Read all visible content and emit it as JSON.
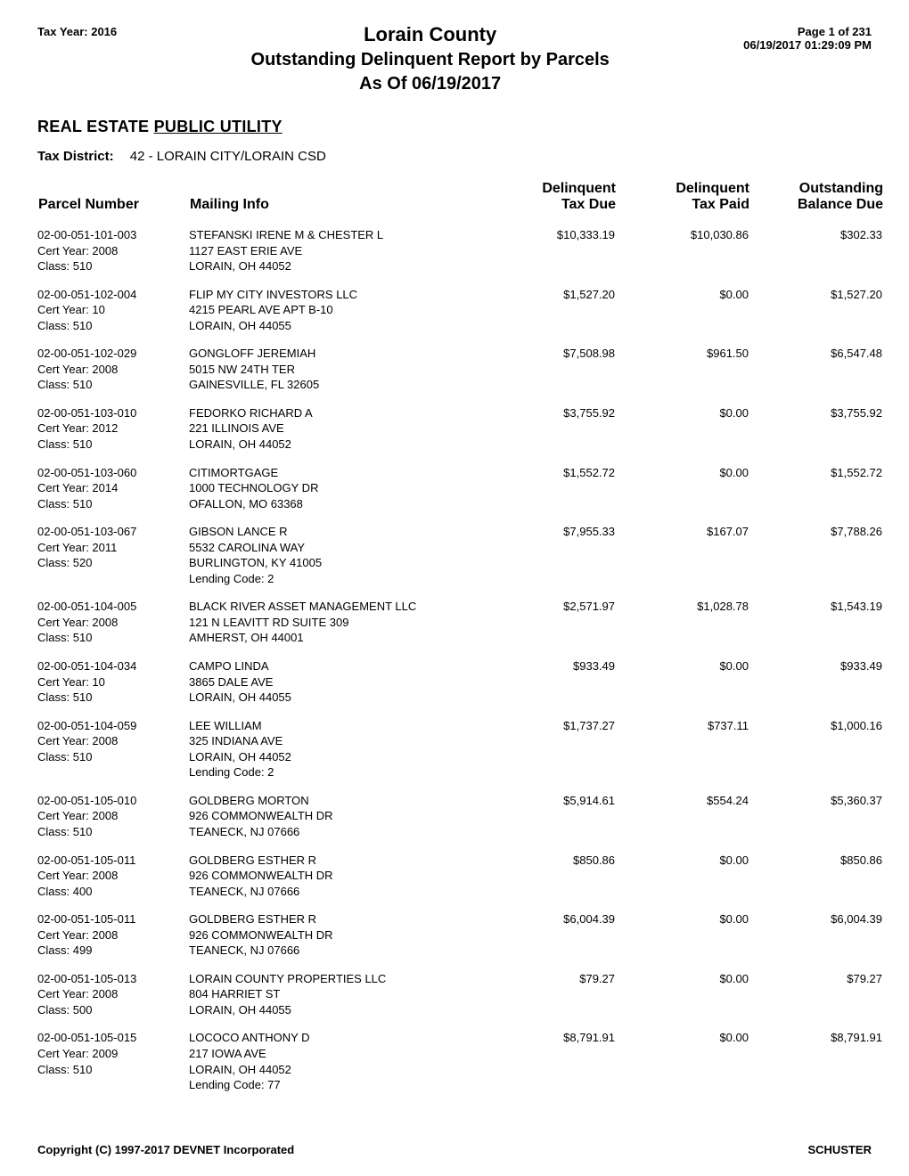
{
  "header": {
    "tax_year_label": "Tax Year: 2016",
    "page_label": "Page 1 of 231",
    "timestamp": "06/19/2017 01:29:09 PM",
    "title_main": "Lorain County",
    "title_sub": "Outstanding Delinquent Report by Parcels",
    "title_sub2": "As Of 06/19/2017"
  },
  "section": {
    "prefix": "REAL ESTATE ",
    "underlined": "PUBLIC UTILITY"
  },
  "district": {
    "label": "Tax District:",
    "value": "42 - LORAIN CITY/LORAIN CSD"
  },
  "columns": {
    "parcel": "Parcel Number",
    "mailing": "Mailing Info",
    "due_top": "Delinquent",
    "due_bottom": "Tax Due",
    "paid_top": "Delinquent",
    "paid_bottom": "Tax Paid",
    "bal_top": "Outstanding",
    "bal_bottom": "Balance Due"
  },
  "rows": [
    {
      "parcel": "02-00-051-101-003",
      "cert": "Cert Year: 2008",
      "class": "Class: 510",
      "mail": [
        "STEFANSKI IRENE M & CHESTER L",
        "1127 EAST ERIE AVE",
        "LORAIN, OH 44052"
      ],
      "due": "$10,333.19",
      "paid": "$10,030.86",
      "bal": "$302.33"
    },
    {
      "parcel": "02-00-051-102-004",
      "cert": "Cert Year: 10",
      "class": "Class: 510",
      "mail": [
        "FLIP MY CITY INVESTORS LLC",
        "4215 PEARL AVE APT B-10",
        "LORAIN, OH 44055"
      ],
      "due": "$1,527.20",
      "paid": "$0.00",
      "bal": "$1,527.20"
    },
    {
      "parcel": "02-00-051-102-029",
      "cert": "Cert Year: 2008",
      "class": "Class: 510",
      "mail": [
        "GONGLOFF  JEREMIAH",
        "5015 NW 24TH TER",
        "GAINESVILLE, FL 32605"
      ],
      "due": "$7,508.98",
      "paid": "$961.50",
      "bal": "$6,547.48"
    },
    {
      "parcel": "02-00-051-103-010",
      "cert": "Cert Year: 2012",
      "class": "Class: 510",
      "mail": [
        "FEDORKO RICHARD A",
        "221 ILLINOIS AVE",
        "LORAIN, OH 44052"
      ],
      "due": "$3,755.92",
      "paid": "$0.00",
      "bal": "$3,755.92"
    },
    {
      "parcel": "02-00-051-103-060",
      "cert": "Cert Year: 2014",
      "class": "Class: 510",
      "mail": [
        "CITIMORTGAGE",
        "1000 TECHNOLOGY DR",
        "OFALLON, MO 63368"
      ],
      "due": "$1,552.72",
      "paid": "$0.00",
      "bal": "$1,552.72"
    },
    {
      "parcel": "02-00-051-103-067",
      "cert": "Cert Year: 2011",
      "class": "Class: 520",
      "mail": [
        "GIBSON LANCE R",
        "5532 CAROLINA WAY",
        "BURLINGTON, KY 41005",
        "Lending Code:    2"
      ],
      "due": "$7,955.33",
      "paid": "$167.07",
      "bal": "$7,788.26"
    },
    {
      "parcel": "02-00-051-104-005",
      "cert": "Cert Year: 2008",
      "class": "Class: 510",
      "mail": [
        "BLACK RIVER ASSET MANAGEMENT LLC",
        "121 N LEAVITT RD SUITE 309",
        "AMHERST, OH 44001"
      ],
      "due": "$2,571.97",
      "paid": "$1,028.78",
      "bal": "$1,543.19"
    },
    {
      "parcel": "02-00-051-104-034",
      "cert": "Cert Year: 10",
      "class": "Class: 510",
      "mail": [
        "CAMPO LINDA",
        "3865 DALE AVE",
        "LORAIN, OH 44055"
      ],
      "due": "$933.49",
      "paid": "$0.00",
      "bal": "$933.49"
    },
    {
      "parcel": "02-00-051-104-059",
      "cert": "Cert Year: 2008",
      "class": "Class: 510",
      "mail": [
        "LEE WILLIAM",
        "325 INDIANA AVE",
        "LORAIN, OH 44052",
        "Lending Code:    2"
      ],
      "due": "$1,737.27",
      "paid": "$737.11",
      "bal": "$1,000.16"
    },
    {
      "parcel": "02-00-051-105-010",
      "cert": "Cert Year: 2008",
      "class": "Class: 510",
      "mail": [
        "GOLDBERG MORTON",
        "926 COMMONWEALTH DR",
        "TEANECK, NJ 07666"
      ],
      "due": "$5,914.61",
      "paid": "$554.24",
      "bal": "$5,360.37"
    },
    {
      "parcel": "02-00-051-105-011",
      "cert": "Cert Year: 2008",
      "class": "Class: 400",
      "mail": [
        "GOLDBERG ESTHER  R",
        "926 COMMONWEALTH DR",
        "TEANECK, NJ 07666"
      ],
      "due": "$850.86",
      "paid": "$0.00",
      "bal": "$850.86"
    },
    {
      "parcel": "02-00-051-105-011",
      "cert": "Cert Year: 2008",
      "class": "Class: 499",
      "mail": [
        "GOLDBERG ESTHER  R",
        "926 COMMONWEALTH DR",
        "TEANECK, NJ 07666"
      ],
      "due": "$6,004.39",
      "paid": "$0.00",
      "bal": "$6,004.39"
    },
    {
      "parcel": "02-00-051-105-013",
      "cert": "Cert Year: 2008",
      "class": "Class: 500",
      "mail": [
        "LORAIN COUNTY PROPERTIES LLC",
        "804 HARRIET ST",
        "LORAIN, OH 44055"
      ],
      "due": "$79.27",
      "paid": "$0.00",
      "bal": "$79.27"
    },
    {
      "parcel": "02-00-051-105-015",
      "cert": "Cert Year: 2009",
      "class": "Class: 510",
      "mail": [
        "LOCOCO ANTHONY D",
        "217 IOWA AVE",
        "LORAIN, OH 44052",
        "Lending Code:    77"
      ],
      "due": "$8,791.91",
      "paid": "$0.00",
      "bal": "$8,791.91"
    }
  ],
  "footer": {
    "left": "Copyright (C) 1997-2017 DEVNET Incorporated",
    "right": "SCHUSTER"
  }
}
